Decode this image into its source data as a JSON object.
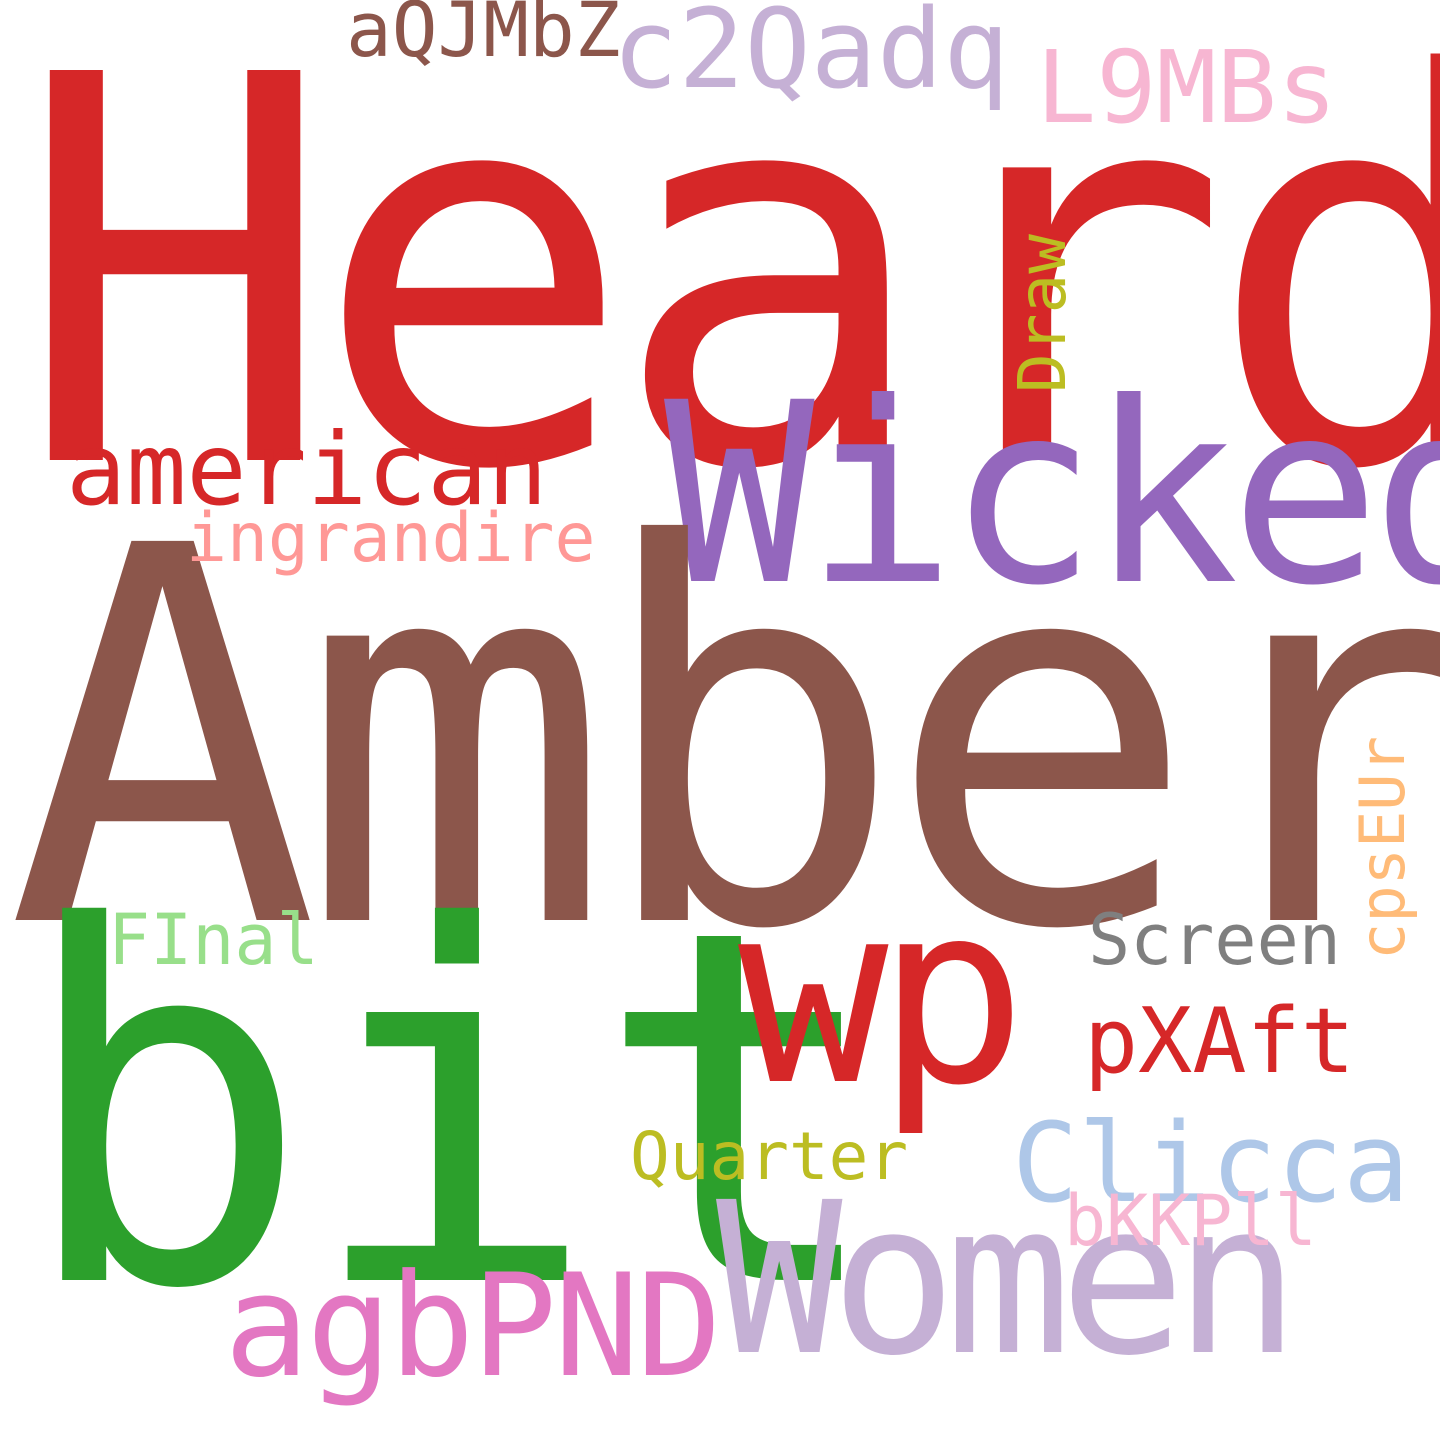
{
  "words": {
    "heard": {
      "text": "Heard",
      "color": "#d62728"
    },
    "amber": {
      "text": "Amber",
      "color": "#8c564b"
    },
    "wicked": {
      "text": "Wicked",
      "color": "#9467bd"
    },
    "bit": {
      "text": "bit",
      "color": "#2ca02c"
    },
    "wp": {
      "text": "wp",
      "color": "#d62728"
    },
    "women": {
      "text": "Women",
      "color": "#c5b0d5"
    },
    "agbpnd": {
      "text": "agbPND",
      "color": "#e377c2"
    },
    "american": {
      "text": "american",
      "color": "#d62728"
    },
    "ingrandire": {
      "text": "ingrandire",
      "color": "#ff9896"
    },
    "aqjmbz": {
      "text": "aQJMbZ",
      "color": "#8c564b"
    },
    "c2qadq": {
      "text": "c2Qadq",
      "color": "#c5b0d5"
    },
    "l9mbs": {
      "text": "L9MBs",
      "color": "#f7b6d2"
    },
    "draw": {
      "text": "Draw",
      "color": "#bcbd22"
    },
    "cpseur": {
      "text": "cpsEUr",
      "color": "#ffbb78"
    },
    "screen": {
      "text": "Screen",
      "color": "#7f7f7f"
    },
    "pxaft": {
      "text": "pXAft",
      "color": "#d62728"
    },
    "final": {
      "text": "FInal",
      "color": "#98df8a"
    },
    "clicca": {
      "text": "Clicca",
      "color": "#aec7e8"
    },
    "quarter": {
      "text": "Quarter",
      "color": "#bcbd22"
    },
    "bkkpll": {
      "text": "bKKPll",
      "color": "#f7b6d2"
    }
  }
}
